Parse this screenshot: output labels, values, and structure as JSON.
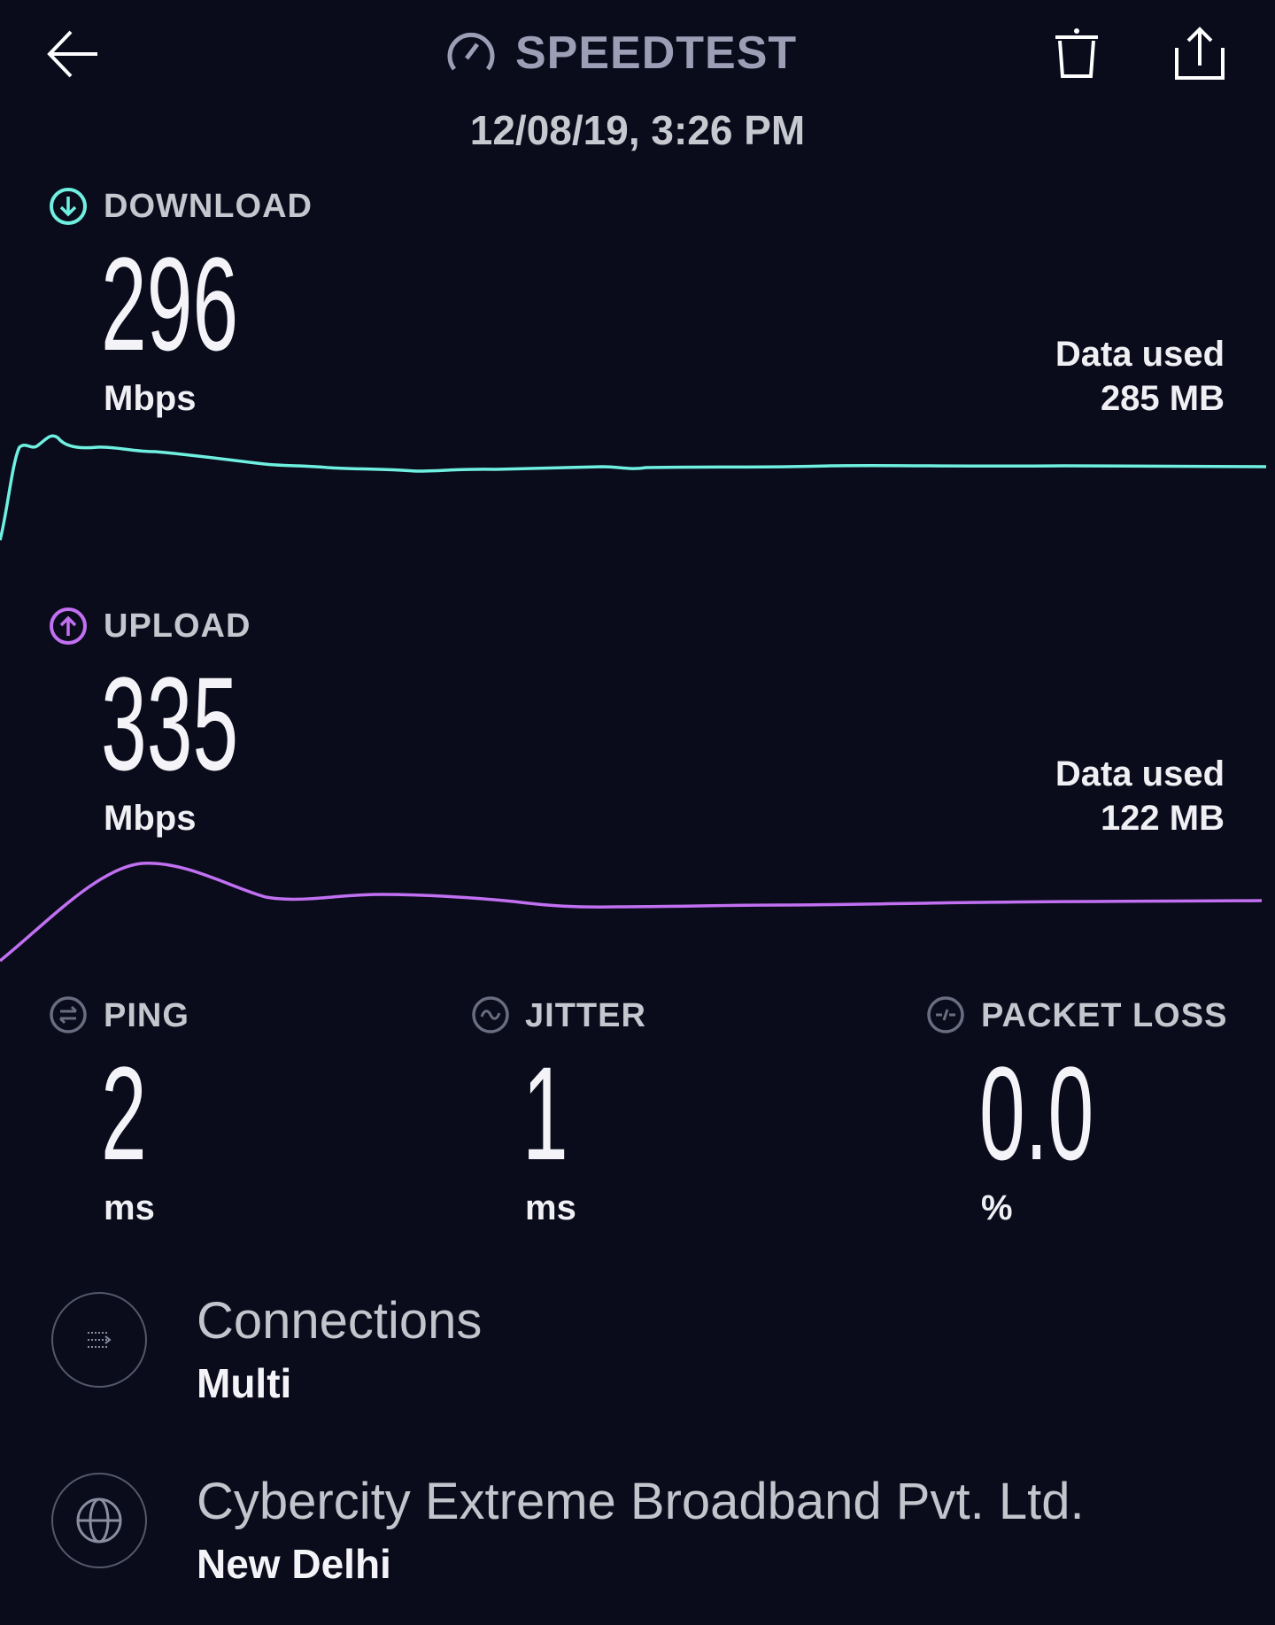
{
  "header": {
    "title": "SPEEDTEST",
    "timestamp": "12/08/19, 3:26 PM"
  },
  "download": {
    "label": "DOWNLOAD",
    "value": "296",
    "unit": "Mbps",
    "data_used_label": "Data used",
    "data_used": "285 MB",
    "color": "#6ff0e0"
  },
  "upload": {
    "label": "UPLOAD",
    "value": "335",
    "unit": "Mbps",
    "data_used_label": "Data used",
    "data_used": "122 MB",
    "color": "#c270f2"
  },
  "ping": {
    "label": "PING",
    "value": "2",
    "unit": "ms"
  },
  "jitter": {
    "label": "JITTER",
    "value": "1",
    "unit": "ms"
  },
  "packet_loss": {
    "label": "PACKET LOSS",
    "value": "0.0",
    "unit": "%"
  },
  "connections": {
    "title": "Connections",
    "value": "Multi"
  },
  "provider": {
    "name": "Cybercity Extreme Broadband Pvt. Ltd.",
    "location": "New Delhi"
  }
}
